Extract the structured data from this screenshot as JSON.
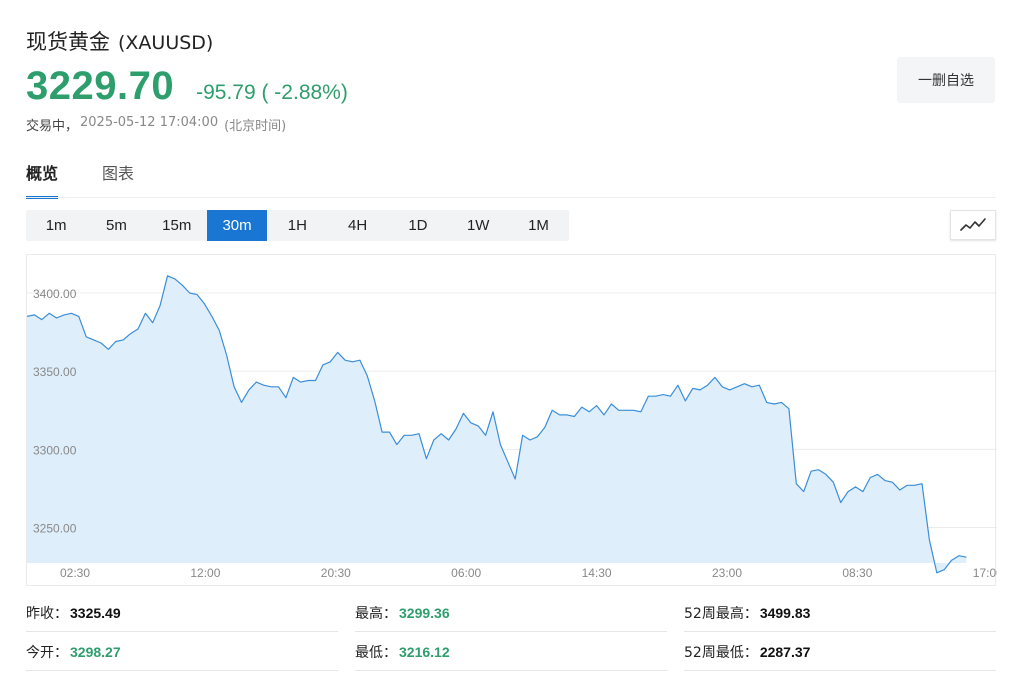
{
  "header": {
    "name_cn": "现货黄金",
    "symbol": "(XAUUSD)",
    "price": "3229.70",
    "change": "-95.79",
    "change_pct": "( -2.88%)",
    "status": "交易中，",
    "datetime": "2025-05-12 17:04:00",
    "timezone": "(北京时间)",
    "watch_button": "一删自选",
    "price_color": "#2e9e6c"
  },
  "tabs": [
    {
      "label": "概览",
      "active": true
    },
    {
      "label": "图表",
      "active": false
    }
  ],
  "intervals": [
    {
      "label": "1m",
      "active": false
    },
    {
      "label": "5m",
      "active": false
    },
    {
      "label": "15m",
      "active": false
    },
    {
      "label": "30m",
      "active": true
    },
    {
      "label": "1H",
      "active": false
    },
    {
      "label": "4H",
      "active": false
    },
    {
      "label": "1D",
      "active": false
    },
    {
      "label": "1W",
      "active": false
    },
    {
      "label": "1M",
      "active": false
    }
  ],
  "chart_type_icon": "line-chart-icon",
  "accent_color": "#1976d2",
  "chart_data": {
    "type": "area",
    "x_tick_labels": [
      "02:30",
      "12:00",
      "20:30",
      "06:00",
      "14:30",
      "23:00",
      "08:30",
      "17:00"
    ],
    "y_tick_labels": [
      "3400.00",
      "3350.00",
      "3300.00",
      "3250.00"
    ],
    "y_ticks": [
      3400,
      3350,
      3300,
      3250
    ],
    "ylim": [
      3227.3,
      3424.3
    ],
    "x_count": 132,
    "line_color": "#3a8ed8",
    "fill_color": "#dfeefb",
    "grid": true,
    "values": [
      3385,
      3386,
      3383,
      3387,
      3384,
      3386,
      3387,
      3385,
      3372,
      3370,
      3368,
      3364,
      3369,
      3370,
      3374,
      3377,
      3387,
      3381,
      3392,
      3411,
      3409,
      3405,
      3400,
      3399,
      3393,
      3385,
      3376,
      3360,
      3340,
      3330,
      3338,
      3343,
      3341,
      3340,
      3340,
      3333,
      3346,
      3343,
      3344,
      3344,
      3354,
      3356,
      3362,
      3357,
      3356,
      3357,
      3347,
      3331,
      3311,
      3311,
      3303,
      3309,
      3309,
      3310,
      3294,
      3306,
      3310,
      3306,
      3313,
      3323,
      3317,
      3315,
      3309,
      3324,
      3303,
      3292,
      3281,
      3309,
      3306,
      3308,
      3314,
      3325,
      3322,
      3322,
      3321,
      3327,
      3324,
      3328,
      3322,
      3329,
      3325,
      3325,
      3325,
      3324,
      3334,
      3334,
      3335,
      3334,
      3341,
      3331,
      3339,
      3338,
      3341,
      3346,
      3340,
      3338,
      3340,
      3342,
      3340,
      3341,
      3330,
      3329,
      3330,
      3326,
      3278,
      3273,
      3286,
      3287,
      3284,
      3279,
      3266,
      3273,
      3276,
      3273,
      3282,
      3284,
      3280,
      3279,
      3274,
      3277,
      3277,
      3278,
      3242,
      3221,
      3223,
      3229,
      3232,
      3231
    ]
  },
  "stats": [
    {
      "label": "昨收：",
      "value": "3325.49",
      "color": "black"
    },
    {
      "label": "最高：",
      "value": "3299.36",
      "color": "green"
    },
    {
      "label": "52周最高：",
      "value": "3499.83",
      "color": "black"
    },
    {
      "label": "今开：",
      "value": "3298.27",
      "color": "green"
    },
    {
      "label": "最低：",
      "value": "3216.12",
      "color": "green"
    },
    {
      "label": "52周最低：",
      "value": "2287.37",
      "color": "black"
    }
  ]
}
